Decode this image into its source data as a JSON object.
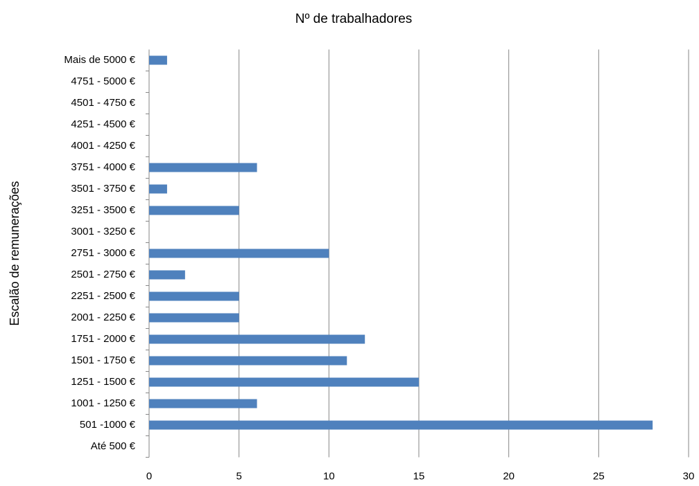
{
  "chart_data": {
    "type": "bar",
    "orientation": "horizontal",
    "title": "Nº de trabalhadores",
    "y_label": "Escalão de remunerações",
    "categories": [
      "Até 500 €",
      "501 -1000 €",
      "1001 - 1250 €",
      "1251 - 1500 €",
      "1501 - 1750 €",
      "1751 - 2000 €",
      "2001 - 2250 €",
      "2251 - 2500 €",
      "2501 - 2750 €",
      "2751 - 3000 €",
      "3001 - 3250 €",
      "3251 - 3500 €",
      "3501 - 3750 €",
      "3751 - 4000 €",
      "4001 - 4250 €",
      "4251 - 4500 €",
      "4501 - 4750 €",
      "4751 - 5000 €",
      "Mais de 5000 €"
    ],
    "values": [
      0,
      28,
      6,
      15,
      11,
      12,
      5,
      5,
      2,
      10,
      0,
      5,
      1,
      6,
      0,
      0,
      0,
      0,
      1
    ],
    "color": "#4f81bd",
    "xlim": [
      0,
      30
    ],
    "xticks": [
      0,
      5,
      10,
      15,
      20,
      25,
      30
    ],
    "grid": true
  }
}
